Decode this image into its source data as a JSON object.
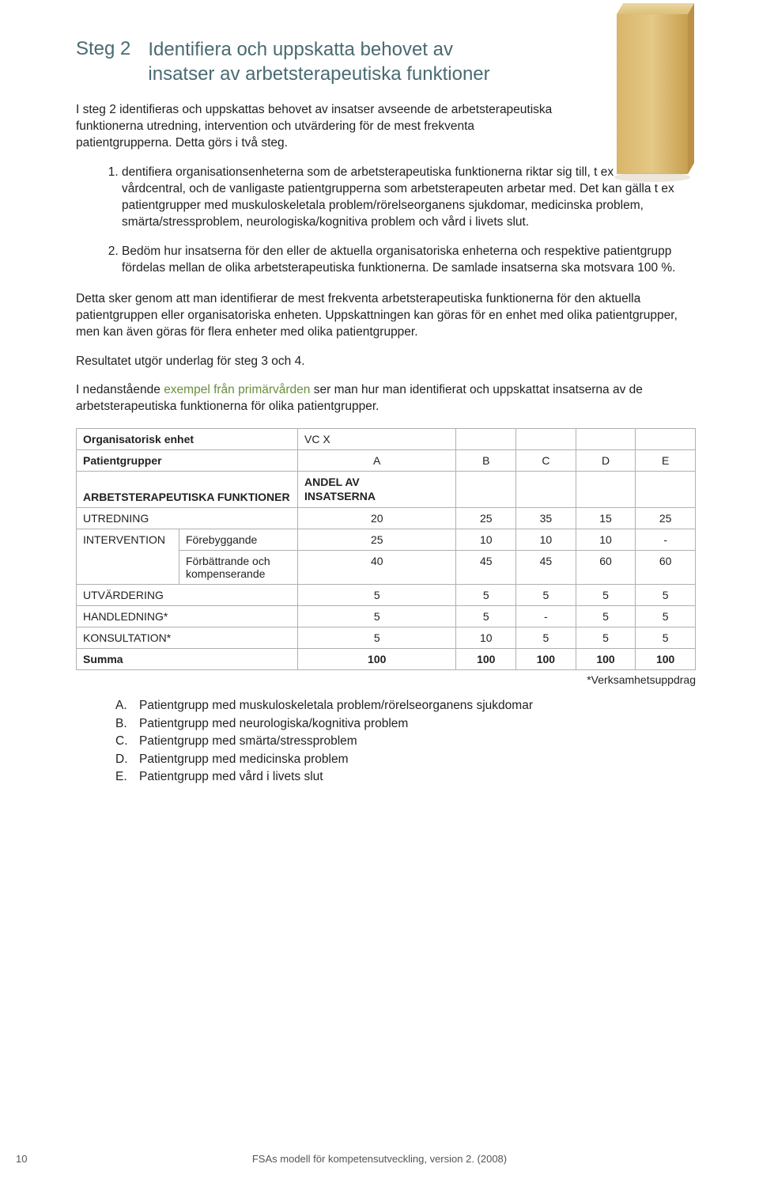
{
  "colors": {
    "accent": "#4a6a72",
    "green": "#6a8f3c",
    "wood_light": "#e4c886",
    "wood_mid": "#d8b66a",
    "wood_dark": "#c8a050",
    "border": "#b0b0b0"
  },
  "header": {
    "step_label": "Steg 2",
    "title_line1": "Identifiera och uppskatta behovet av",
    "title_line2": "insatser av arbetsterapeutiska funktioner"
  },
  "intro": "I steg 2 identifieras och uppskattas behovet av insatser avseende de arbetsterapeutiska funktionerna utredning, intervention och utvärdering för de mest frekventa patientgrupperna. Detta görs i två steg.",
  "ol": {
    "item1": "dentifiera organisationsenheterna som de arbetsterapeutiska funktionerna riktar sig till, t ex vårdcentral, och de vanligaste patientgrupperna som arbetsterapeuten arbetar med. Det kan gälla t ex patientgrupper med muskuloskeletala problem/rörelseorganens sjukdomar, medicinska problem, smärta/stressproblem, neurologiska/kognitiva problem och vård i livets slut.",
    "item2": "Bedöm hur insatserna för den eller de aktuella organisatoriska enheterna och respektive patientgrupp fördelas mellan de olika arbetsterapeutiska funktionerna. De samlade insatserna ska motsvara 100 %."
  },
  "para1": "Detta sker genom att man identifierar de mest frekventa arbetsterapeutiska funktionerna för den aktuella patientgruppen eller organisatoriska enheten. Uppskattningen kan göras för en enhet med olika patientgrupper, men kan även göras för flera enheter med olika patientgrupper.",
  "para2": "Resultatet utgör underlag för steg 3 och 4.",
  "para3_pre": "I nedanstående ",
  "para3_green": "exempel från primärvården",
  "para3_post": " ser man hur man identifierat och uppskattat insatserna av de arbetsterapeutiska funktionerna för olika patientgrupper.",
  "table": {
    "org_label": "Organisatorisk enhet",
    "org_value": "VC X",
    "pg_label": "Patientgrupper",
    "groups": [
      "A",
      "B",
      "C",
      "D",
      "E"
    ],
    "func_header": "ARBETSTERAPEUTISKA FUNKTIONER",
    "andel_l1": "ANDEL AV",
    "andel_l2": "INSATSERNA",
    "rows": [
      {
        "label": "UTREDNING",
        "sub": "",
        "vals": [
          "20",
          "25",
          "35",
          "15",
          "25"
        ]
      },
      {
        "label": "INTERVENTION",
        "sub": "Förebyggande",
        "vals": [
          "25",
          "10",
          "10",
          "10",
          "-"
        ]
      },
      {
        "label": "",
        "sub": "Förbättrande och kompenserande",
        "vals": [
          "40",
          "45",
          "45",
          "60",
          "60"
        ]
      },
      {
        "label": "UTVÄRDERING",
        "sub": "",
        "vals": [
          "5",
          "5",
          "5",
          "5",
          "5"
        ]
      },
      {
        "label": "HANDLEDNING*",
        "sub": "",
        "vals": [
          "5",
          "5",
          "-",
          "5",
          "5"
        ]
      },
      {
        "label": "KONSULTATION*",
        "sub": "",
        "vals": [
          "5",
          "10",
          "5",
          "5",
          "5"
        ]
      }
    ],
    "sum_label": "Summa",
    "sum_vals": [
      "100",
      "100",
      "100",
      "100",
      "100"
    ]
  },
  "footnote": "*Verksamhetsuppdrag",
  "legend": [
    {
      "l": "A.",
      "t": "Patientgrupp med muskuloskeletala problem/rörelseorganens sjukdomar"
    },
    {
      "l": "B.",
      "t": "Patientgrupp med neurologiska/kognitiva problem"
    },
    {
      "l": "C.",
      "t": "Patientgrupp med smärta/stressproblem"
    },
    {
      "l": "D.",
      "t": "Patientgrupp med medicinska problem"
    },
    {
      "l": "E.",
      "t": "Patientgrupp med vård i livets slut"
    }
  ],
  "footer": {
    "page": "10",
    "text": "FSAs modell för kompetensutveckling, version 2. (2008)"
  }
}
